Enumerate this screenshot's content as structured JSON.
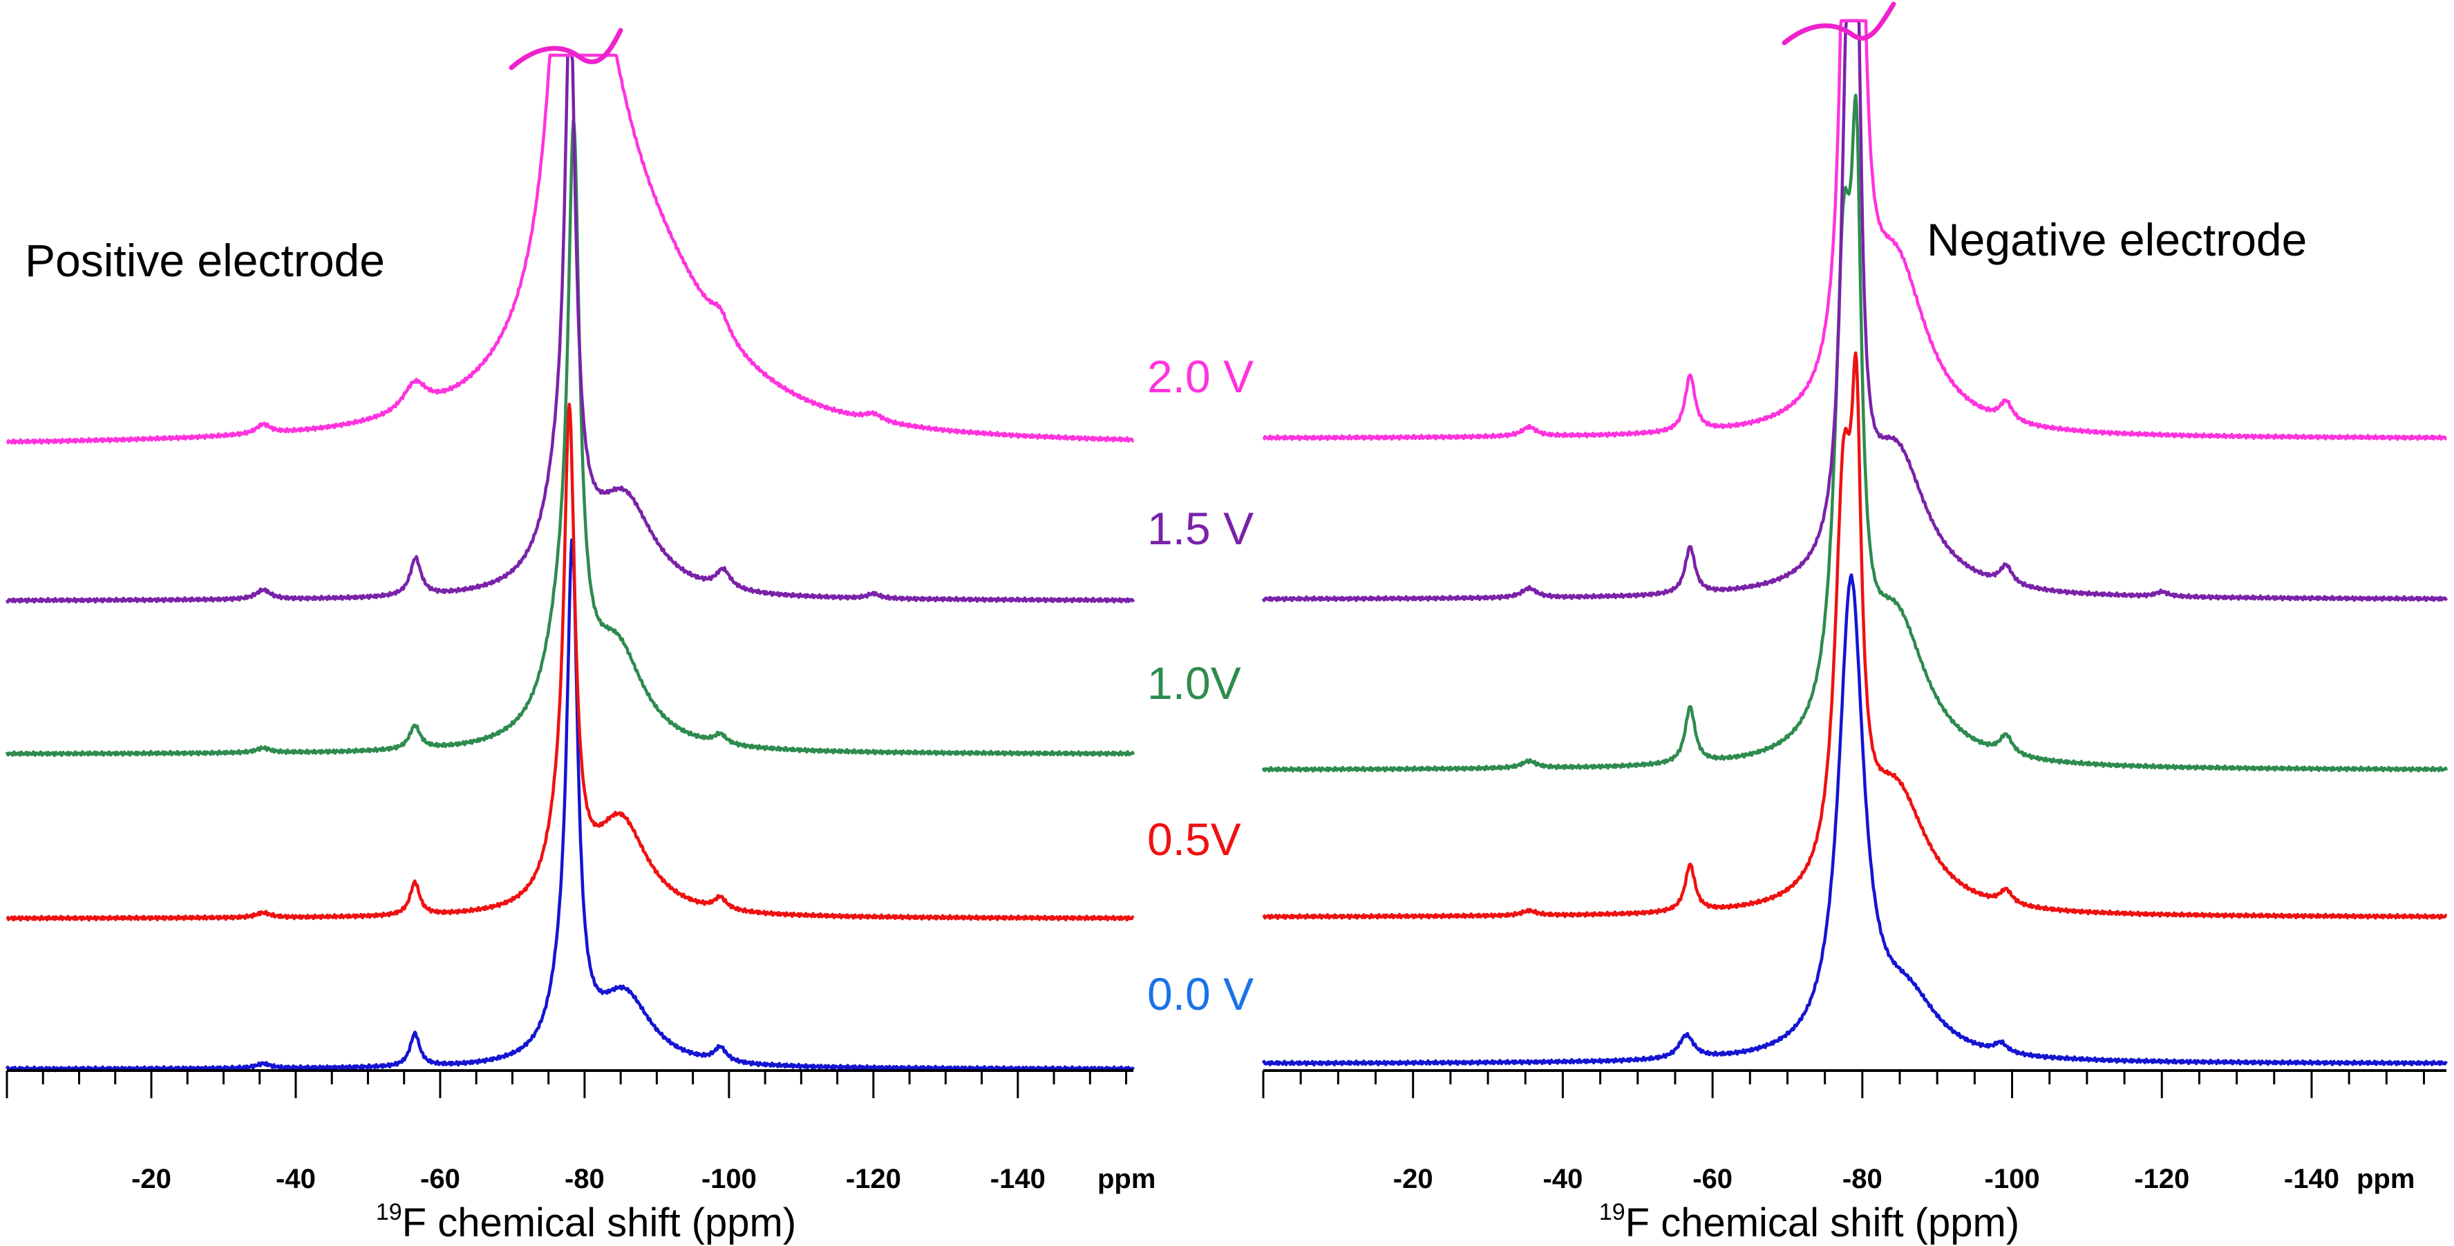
{
  "chart_data": [
    {
      "type": "line",
      "title": "Positive electrode",
      "xlabel": "19F chemical shift (ppm)",
      "xlabel_sup": "19",
      "xlabel_main": "F chemical shift (ppm)",
      "x_unit_label": "ppm",
      "xlim": [
        0,
        -156
      ],
      "x_reversed": true,
      "x_ticks": [
        -20,
        -40,
        -60,
        -80,
        -100,
        -120,
        -140
      ],
      "x_tick_labels": [
        "-20",
        "-40",
        "-60",
        "-80",
        "-100",
        "-120",
        "-140"
      ],
      "y_axis_visible": false,
      "grid": false,
      "series": [
        {
          "name": "0.0 V",
          "color": "#1414d2",
          "offset": 0,
          "peaks": [
            [
              -78.3,
              1.0,
              0.9
            ],
            [
              -77.0,
              0.12,
              2.2
            ],
            [
              -85.5,
              0.15,
              4.5
            ],
            [
              -56.5,
              0.07,
              0.8
            ],
            [
              -98.8,
              0.03,
              1.0
            ],
            [
              -35.5,
              0.01,
              1.2
            ]
          ]
        },
        {
          "name": "0.5V",
          "color": "#ee1111",
          "offset": 1,
          "peaks": [
            [
              -77.9,
              0.95,
              0.9
            ],
            [
              -76.5,
              0.12,
              2.2
            ],
            [
              -85.0,
              0.2,
              4.5
            ],
            [
              -56.5,
              0.07,
              0.8
            ],
            [
              -98.8,
              0.025,
              1.0
            ],
            [
              -35.5,
              0.01,
              1.2
            ]
          ]
        },
        {
          "name": "1.0V",
          "color": "#2e8b4e",
          "offset": 2,
          "peaks": [
            [
              -78.5,
              1.1,
              0.95
            ],
            [
              -77.0,
              0.22,
              3.0
            ],
            [
              -84.5,
              0.2,
              4.5
            ],
            [
              -56.5,
              0.05,
              0.9
            ],
            [
              -98.8,
              0.02,
              1.0
            ],
            [
              -35.5,
              0.01,
              1.2
            ]
          ]
        },
        {
          "name": "1.5 V",
          "color": "#7a22a8",
          "offset": 3,
          "peaks": [
            [
              -78.0,
              1.05,
              0.9
            ],
            [
              -76.8,
              0.2,
              3.0
            ],
            [
              -85.5,
              0.2,
              5.0
            ],
            [
              -56.6,
              0.08,
              0.9
            ],
            [
              -99.2,
              0.04,
              1.2
            ],
            [
              -35.5,
              0.02,
              1.2
            ],
            [
              -120.0,
              0.01,
              1.0
            ]
          ]
        },
        {
          "name": "2.0 V",
          "color": "#ff33dd",
          "offset": 4,
          "peaks": [
            [
              -78.4,
              1.5,
              2.2
            ],
            [
              -82.0,
              0.5,
              7.0
            ],
            [
              -90.0,
              0.25,
              12.0
            ],
            [
              -56.5,
              0.06,
              2.0
            ],
            [
              -98.8,
              0.04,
              1.5
            ],
            [
              -35.5,
              0.02,
              1.2
            ],
            [
              -120.0,
              0.015,
              1.5
            ]
          ]
        }
      ]
    },
    {
      "type": "line",
      "title": "Negative electrode",
      "xlabel": "19F chemical shift (ppm)",
      "xlabel_sup": "19",
      "xlabel_main": "F chemical shift (ppm)",
      "x_unit_label": "ppm",
      "xlim": [
        0,
        -158
      ],
      "x_reversed": true,
      "x_ticks": [
        -20,
        -40,
        -60,
        -80,
        -100,
        -120,
        -140
      ],
      "x_tick_labels": [
        "-20",
        "-40",
        "-60",
        "-80",
        "-100",
        "-120",
        "-140"
      ],
      "y_axis_visible": false,
      "grid": false,
      "series": [
        {
          "name": "0.0 V",
          "color": "#1414d2",
          "offset": 0,
          "peaks": [
            [
              -78.5,
              1.0,
              2.0
            ],
            [
              -86.0,
              0.12,
              5.0
            ],
            [
              -56.5,
              0.05,
              1.2
            ],
            [
              -98.5,
              0.02,
              1.0
            ]
          ]
        },
        {
          "name": "0.5V",
          "color": "#ee1111",
          "offset": 1,
          "peaks": [
            [
              -77.5,
              0.8,
              1.4
            ],
            [
              -79.2,
              0.75,
              0.8
            ],
            [
              -84.5,
              0.25,
              5.0
            ],
            [
              -57.0,
              0.1,
              0.8
            ],
            [
              -99.2,
              0.03,
              1.0
            ],
            [
              -35.5,
              0.01,
              1.2
            ]
          ]
        },
        {
          "name": "1.0V",
          "color": "#2e8b4e",
          "offset": 2,
          "peaks": [
            [
              -77.5,
              0.95,
              1.4
            ],
            [
              -79.2,
              0.9,
              0.8
            ],
            [
              -84.5,
              0.3,
              5.0
            ],
            [
              -57.0,
              0.12,
              0.8
            ],
            [
              -99.2,
              0.04,
              1.0
            ],
            [
              -35.5,
              0.015,
              1.2
            ]
          ]
        },
        {
          "name": "1.5 V",
          "color": "#7a22a8",
          "offset": 3,
          "peaks": [
            [
              -78.0,
              1.0,
              1.0
            ],
            [
              -79.3,
              0.9,
              0.7
            ],
            [
              -84.5,
              0.3,
              5.0
            ],
            [
              -57.0,
              0.1,
              0.8
            ],
            [
              -99.2,
              0.04,
              1.0
            ],
            [
              -35.5,
              0.02,
              1.2
            ],
            [
              -120.0,
              0.01,
              1.0
            ]
          ]
        },
        {
          "name": "2.0 V",
          "color": "#ff33dd",
          "offset": 4,
          "peaks": [
            [
              -78.2,
              1.6,
              0.9
            ],
            [
              -79.4,
              1.3,
              0.8
            ],
            [
              -84.5,
              0.35,
              5.0
            ],
            [
              -57.0,
              0.12,
              0.8
            ],
            [
              -99.2,
              0.04,
              1.0
            ],
            [
              -35.5,
              0.02,
              1.2
            ]
          ]
        }
      ]
    }
  ],
  "voltage_labels": [
    {
      "text": "2.0 V",
      "color": "#ff33dd"
    },
    {
      "text": "1.5 V",
      "color": "#7a22a8"
    },
    {
      "text": "1.0V",
      "color": "#2e8b4e"
    },
    {
      "text": "0.5V",
      "color": "#ee1111"
    },
    {
      "text": "0.0 V",
      "color": "#1a73e8"
    }
  ],
  "break_mark_color": "#ee22cc"
}
